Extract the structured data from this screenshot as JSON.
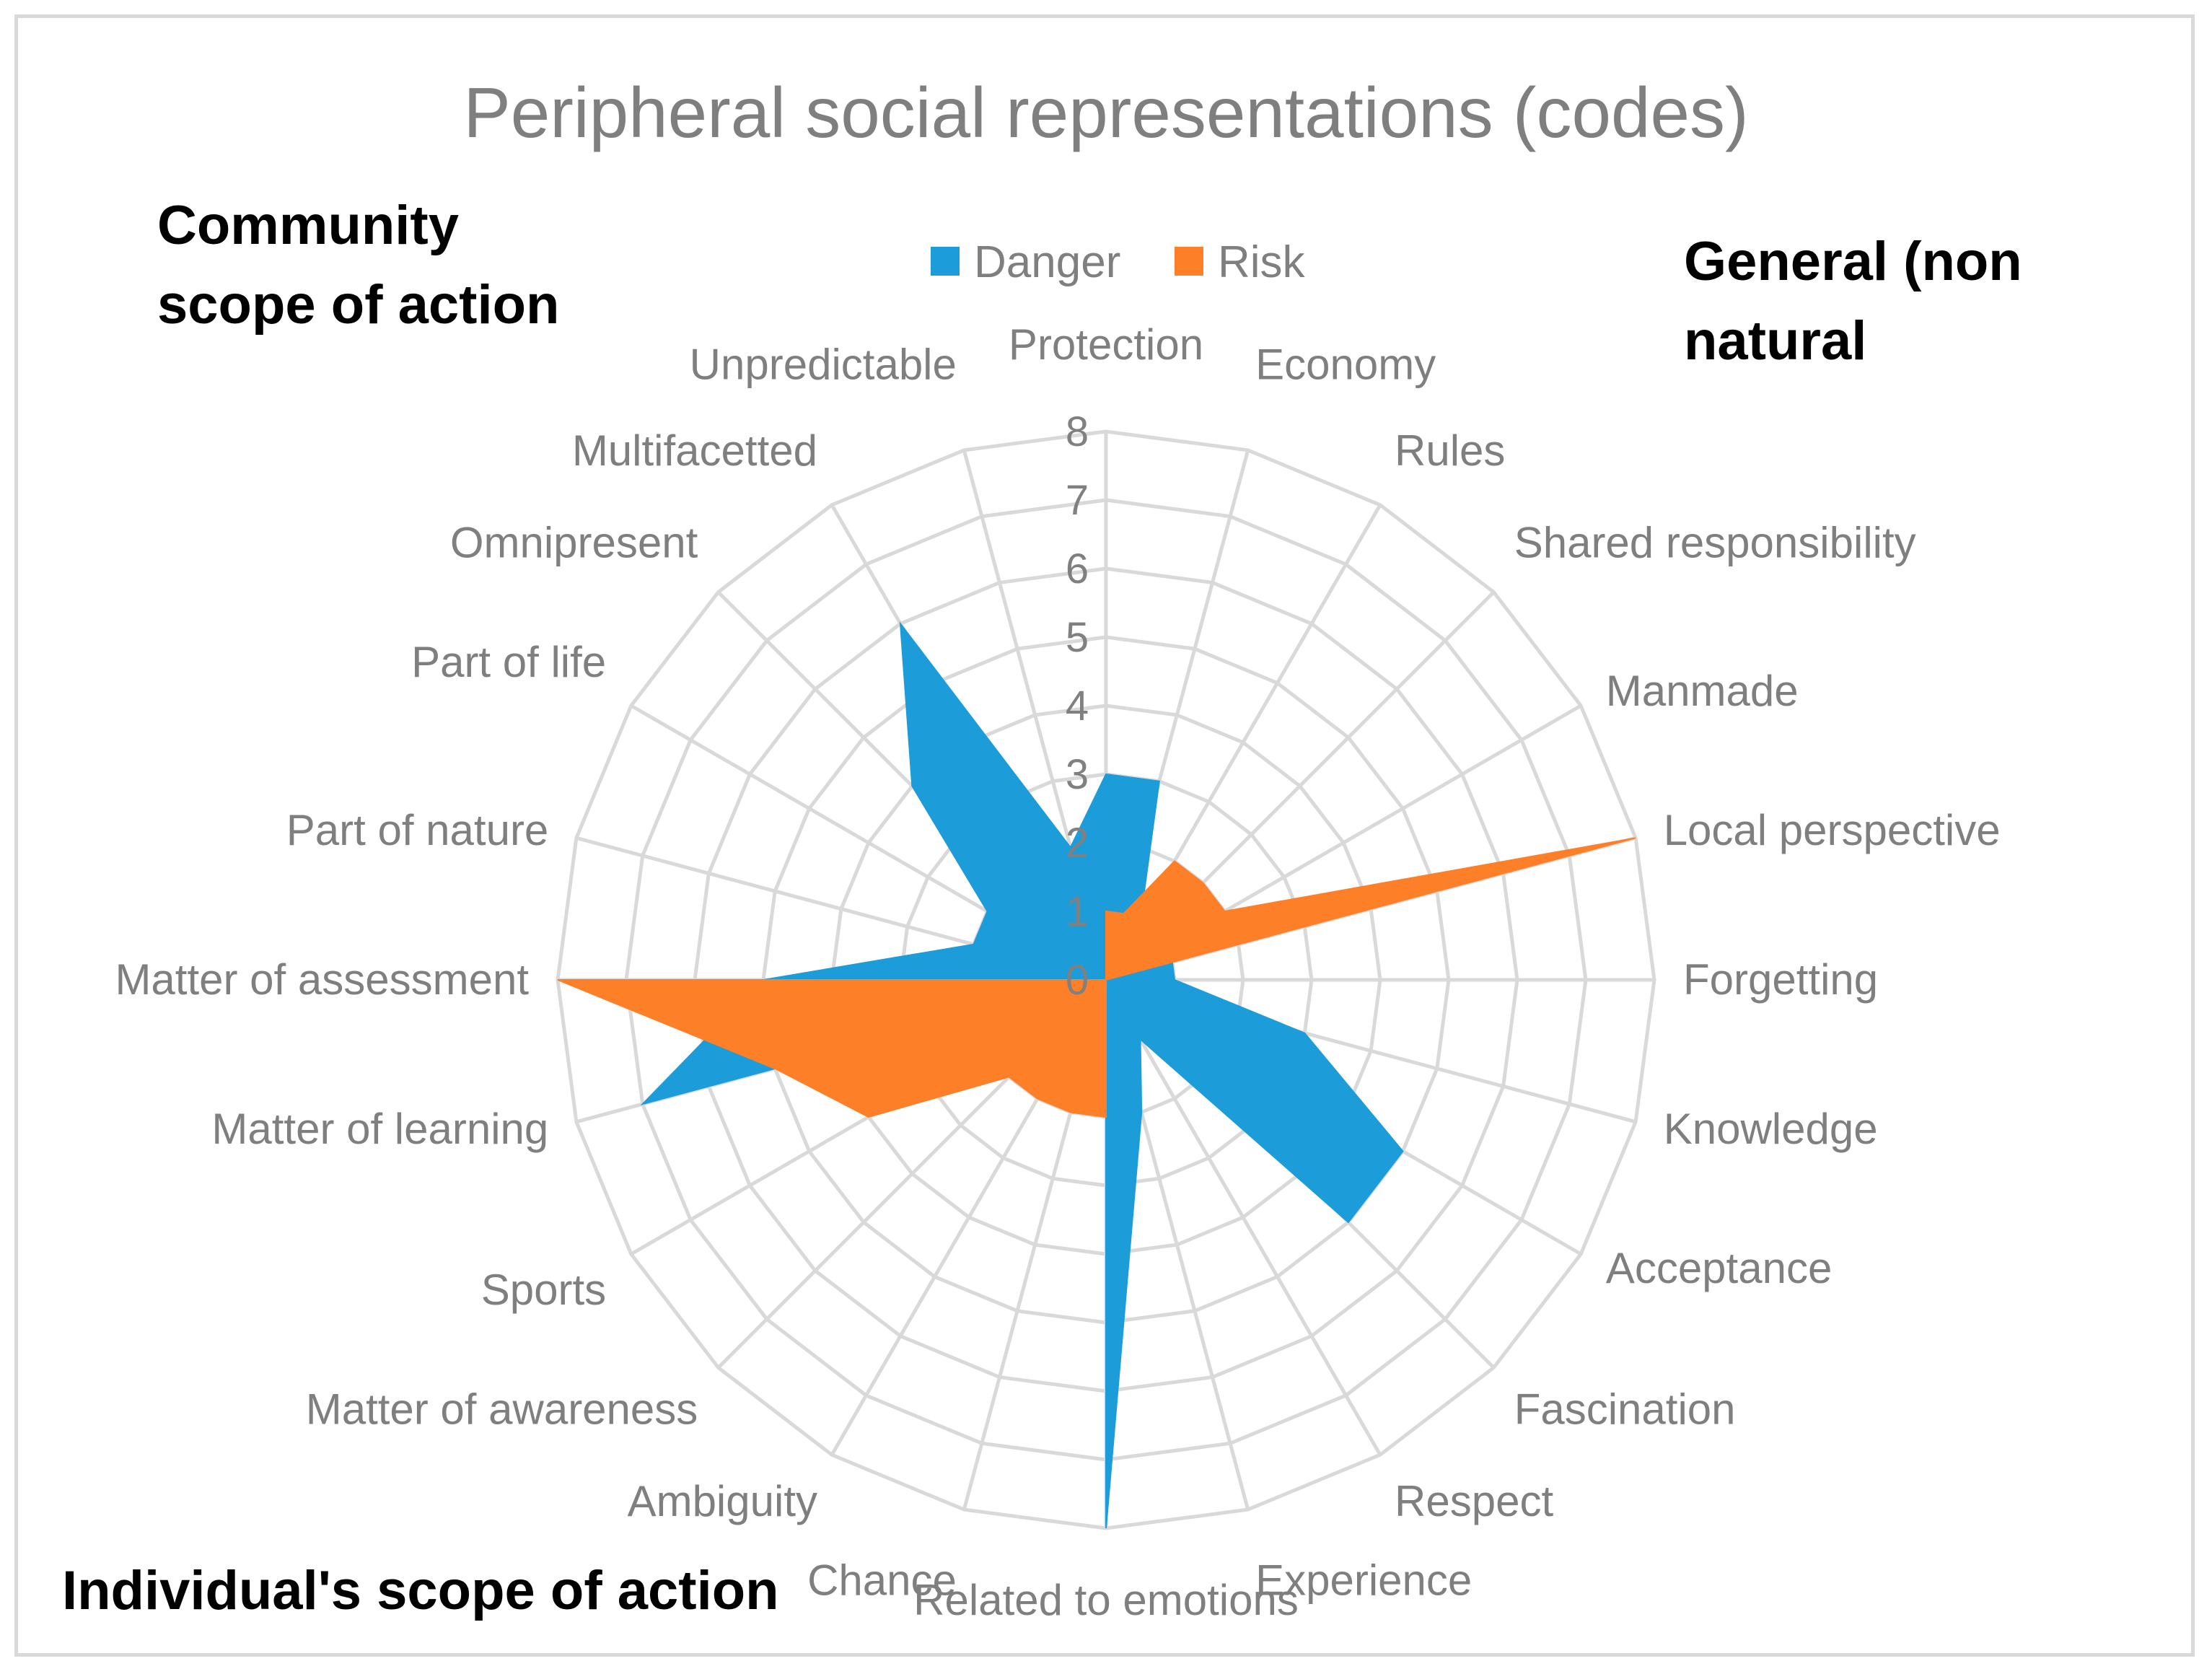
{
  "chart_data": {
    "type": "radar",
    "title": "Peripheral social representations (codes)",
    "categories": [
      "Protection",
      "Economy",
      "Rules",
      "Shared responsibility",
      "Manmade",
      "Local perspective",
      "Forgetting",
      "Knowledge",
      "Acceptance",
      "Fascination",
      "Respect",
      "Experience",
      "Related to emotions",
      "Chance",
      "Ambiguity",
      "Matter of awareness",
      "Sports",
      "Matter of learning",
      "Matter of assessment",
      "Part of nature",
      "Part of life",
      "Omnipresent",
      "Multifacetted",
      "Unpredictable"
    ],
    "series": [
      {
        "name": "Danger",
        "color": "#1c9dd9",
        "values": [
          3,
          3,
          1,
          1,
          1,
          1,
          1,
          3,
          5,
          5,
          1,
          2,
          8,
          0,
          0,
          0,
          0,
          7,
          5,
          2,
          2,
          4,
          6,
          2
        ]
      },
      {
        "name": "Risk",
        "color": "#fd7f28",
        "values": [
          1,
          1,
          2,
          2,
          2,
          8,
          0,
          0,
          0,
          0,
          0,
          0,
          2,
          2,
          2,
          2,
          4,
          5,
          8,
          0,
          0,
          0,
          0,
          0
        ]
      }
    ],
    "rlim": [
      0,
      8
    ],
    "ticks": [
      "0",
      "1",
      "2",
      "3",
      "4",
      "5",
      "6",
      "7",
      "8"
    ],
    "grid": true,
    "legend_position": "top"
  },
  "annotations": {
    "top_left": [
      "Community",
      "scope of action"
    ],
    "top_right": [
      "General (non",
      "natural"
    ],
    "bottom_left": "Individual's scope of action"
  }
}
